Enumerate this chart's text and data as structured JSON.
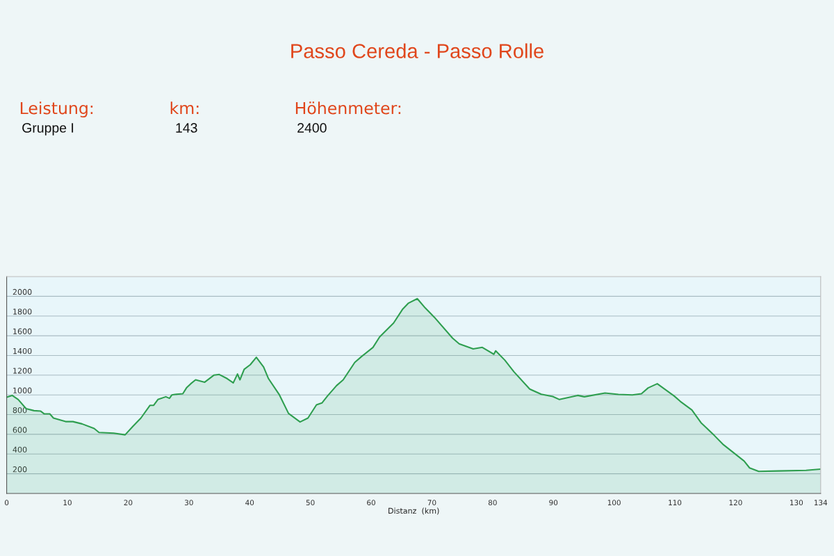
{
  "chart_data": {
    "type": "area",
    "title": "Passo Cereda - Passo Rolle",
    "xlabel": "Distanz  (km)",
    "annotations": [
      "Leistung:",
      "Gruppe I",
      "km:",
      "143",
      "Höhenmeter:",
      "2400"
    ],
    "xlim": [
      0,
      134
    ],
    "xticks": [
      0,
      10,
      20,
      30,
      40,
      50,
      60,
      70,
      80,
      90,
      100,
      110,
      120,
      130,
      134
    ],
    "ylim": [
      0,
      2200
    ],
    "yticks": [
      200,
      400,
      600,
      800,
      1000,
      1200,
      1400,
      1600,
      1800,
      2000
    ],
    "grid": "y",
    "legend": false,
    "series": [
      {
        "color": "#2e9e4f",
        "x": [
          0,
          0.9,
          1.9,
          3.2,
          4.5,
          5.6,
          6.2,
          7.1,
          7.7,
          9.7,
          10.9,
          12.4,
          14.4,
          15.2,
          17.6,
          19.5,
          20.8,
          22.1,
          23.6,
          24.2,
          24.9,
          26.2,
          26.8,
          27.2,
          27.7,
          29,
          29.6,
          30.3,
          31.1,
          32.6,
          34.1,
          35,
          36.3,
          37.3,
          38,
          38.4,
          39.1,
          40.1,
          41.1,
          42.3,
          43.1,
          44.9,
          46.4,
          48.3,
          49.6,
          51,
          51.9,
          52.8,
          54.3,
          55.4,
          57.3,
          58.4,
          60.3,
          61.4,
          63.7,
          65.2,
          66.1,
          67.6,
          68.9,
          70.4,
          73.4,
          74.5,
          76.8,
          78.3,
          80.2,
          80.5,
          82,
          83.5,
          86.1,
          88,
          89.9,
          91,
          94,
          95.1,
          98.5,
          100.7,
          103,
          104.5,
          105.6,
          107.1,
          109.9,
          110.9,
          112.8,
          114.3,
          116.5,
          118,
          121.4,
          122.3,
          123.8,
          127,
          131.6,
          134
        ],
        "values": [
          976,
          995,
          953,
          860,
          840,
          835,
          807,
          807,
          765,
          729,
          729,
          706,
          659,
          619,
          612,
          595,
          682,
          765,
          894,
          894,
          953,
          981,
          965,
          1000,
          1005,
          1012,
          1071,
          1113,
          1153,
          1129,
          1200,
          1207,
          1165,
          1122,
          1212,
          1153,
          1259,
          1306,
          1381,
          1282,
          1165,
          1000,
          812,
          725,
          765,
          899,
          918,
          988,
          1094,
          1153,
          1329,
          1388,
          1482,
          1588,
          1729,
          1871,
          1929,
          1976,
          1882,
          1788,
          1576,
          1518,
          1466,
          1482,
          1412,
          1447,
          1353,
          1235,
          1059,
          1007,
          984,
          953,
          995,
          981,
          1019,
          1005,
          1000,
          1012,
          1071,
          1113,
          988,
          934,
          847,
          718,
          588,
          494,
          329,
          259,
          224,
          228,
          235,
          247
        ]
      }
    ]
  }
}
